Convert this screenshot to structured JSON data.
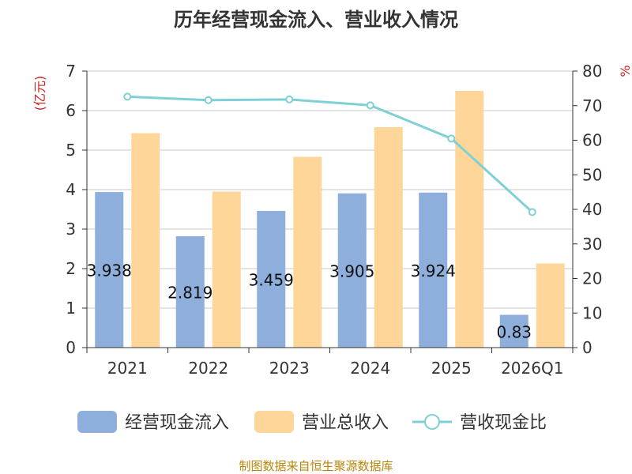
{
  "chart_data": {
    "type": "bar",
    "title": "历年经营现金流入、营业收入情况",
    "categories": [
      "2021",
      "2022",
      "2023",
      "2024",
      "2025",
      "2026Q1"
    ],
    "left_axis": {
      "unit": "(亿元)",
      "ylim": [
        0,
        7
      ],
      "ticks": [
        0,
        1,
        2,
        3,
        4,
        5,
        6,
        7
      ]
    },
    "right_axis": {
      "unit": "%",
      "ylim": [
        0,
        80
      ],
      "ticks": [
        0,
        10,
        20,
        30,
        40,
        50,
        60,
        70,
        80
      ]
    },
    "series": [
      {
        "name": "经营现金流入",
        "kind": "bar",
        "axis": "left",
        "color": "#8eaedb",
        "values": [
          3.938,
          2.819,
          3.459,
          3.905,
          3.924,
          0.83
        ],
        "labels": [
          "3.938",
          "2.819",
          "3.459",
          "3.905",
          "3.924",
          "0.83"
        ]
      },
      {
        "name": "营业总收入",
        "kind": "bar",
        "axis": "left",
        "color": "#ffd699",
        "values": [
          5.43,
          3.95,
          4.83,
          5.58,
          6.5,
          2.13
        ]
      },
      {
        "name": "营收现金比",
        "kind": "line",
        "axis": "right",
        "color": "#7fd0d4",
        "values": [
          72.6,
          71.6,
          71.8,
          70.1,
          60.5,
          39.2
        ]
      }
    ],
    "grid": true,
    "legend": "bottom"
  },
  "footer": {
    "source": "制图数据来自恒生聚源数据库"
  }
}
